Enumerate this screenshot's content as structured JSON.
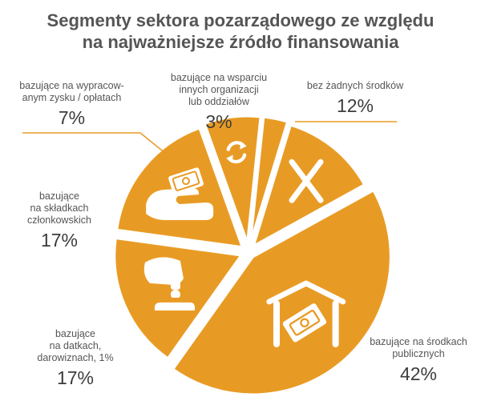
{
  "title_line1": "Segmenty sektora pozarządowego ze względu",
  "title_line2": "na najważniejsze źródło finansowania",
  "colors": {
    "slice": "#e89b24",
    "icon": "#ffffff",
    "leader": "#e89b24",
    "text": "#555555"
  },
  "chart_data": {
    "type": "pie",
    "title": "Segmenty sektora pozarządowego ze względu na najważniejsze źródło finansowania",
    "slices": [
      {
        "label_lines": [
          "bez żadnych środków"
        ],
        "value": 12,
        "value_label": "12%",
        "icon": "x-mark-icon"
      },
      {
        "label_lines": [
          "bazujące na środkach",
          "publicznych"
        ],
        "value": 42,
        "value_label": "42%",
        "icon": "money-house-icon"
      },
      {
        "label_lines": [
          "bazujące",
          "na datkach,",
          "darowiznach, 1%"
        ],
        "value": 17,
        "value_label": "17%",
        "icon": "coin-donation-icon"
      },
      {
        "label_lines": [
          "bazujące",
          "na składkach",
          "członkowskich"
        ],
        "value": 17,
        "value_label": "17%",
        "icon": "hand-money-icon"
      },
      {
        "label_lines": [
          "bazujące na wypracow-",
          "anym zysku / opłatach"
        ],
        "value": 7,
        "value_label": "7%",
        "icon": "recycle-icon"
      },
      {
        "label_lines": [
          "bazujące na wsparciu",
          "innych organizacji",
          "lub oddziałów"
        ],
        "value": 3,
        "value_label": "3%",
        "icon": ""
      }
    ]
  }
}
